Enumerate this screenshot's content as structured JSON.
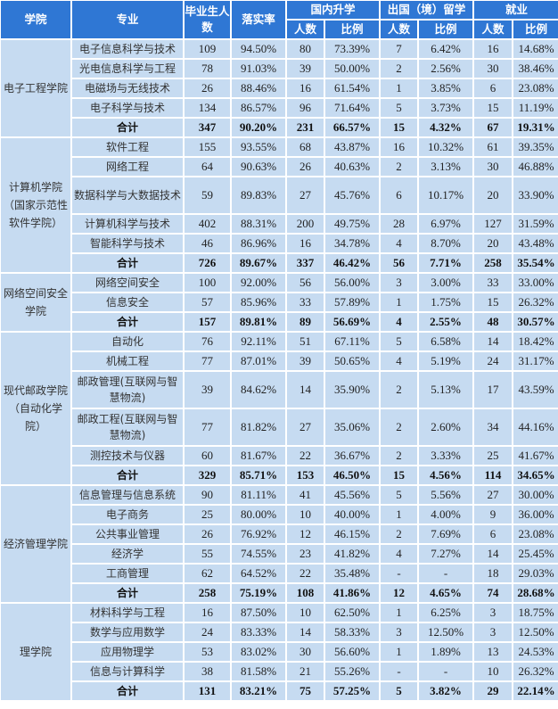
{
  "header": {
    "college": "学院",
    "major": "专业",
    "graduates": "毕业生人数",
    "rate": "落实率",
    "domestic": "国内升学",
    "abroad": "出国（境）留学",
    "employment": "就业",
    "count": "人数",
    "ratio": "比例"
  },
  "colors": {
    "header_bg": "#2f77d4",
    "cell_bg": "#c6dbf1"
  },
  "groups": [
    {
      "college": "电子工程学院",
      "rows": [
        [
          "电子信息科学与技术",
          "109",
          "94.50%",
          "80",
          "73.39%",
          "7",
          "6.42%",
          "16",
          "14.68%"
        ],
        [
          "光电信息科学与工程",
          "78",
          "91.03%",
          "39",
          "50.00%",
          "2",
          "2.56%",
          "30",
          "38.46%"
        ],
        [
          "电磁场与无线技术",
          "26",
          "88.46%",
          "16",
          "61.54%",
          "1",
          "3.85%",
          "6",
          "23.08%"
        ],
        [
          "电子科学与技术",
          "134",
          "86.57%",
          "96",
          "71.64%",
          "5",
          "3.73%",
          "15",
          "11.19%"
        ],
        [
          "合计",
          "347",
          "90.20%",
          "231",
          "66.57%",
          "15",
          "4.32%",
          "67",
          "19.31%"
        ]
      ]
    },
    {
      "college": "计算机学院（国家示范性软件学院）",
      "rows": [
        [
          "软件工程",
          "155",
          "93.55%",
          "68",
          "43.87%",
          "16",
          "10.32%",
          "61",
          "39.35%"
        ],
        [
          "网络工程",
          "64",
          "90.63%",
          "26",
          "40.63%",
          "2",
          "3.13%",
          "30",
          "46.88%"
        ],
        [
          "数据科学与大数据技术",
          "59",
          "89.83%",
          "27",
          "45.76%",
          "6",
          "10.17%",
          "20",
          "33.90%"
        ],
        [
          "计算机科学与技术",
          "402",
          "88.31%",
          "200",
          "49.75%",
          "28",
          "6.97%",
          "127",
          "31.59%"
        ],
        [
          "智能科学与技术",
          "46",
          "86.96%",
          "16",
          "34.78%",
          "4",
          "8.70%",
          "20",
          "43.48%"
        ],
        [
          "合计",
          "726",
          "89.67%",
          "337",
          "46.42%",
          "56",
          "7.71%",
          "258",
          "35.54%"
        ]
      ]
    },
    {
      "college": "网络空间安全学院",
      "rows": [
        [
          "网络空间安全",
          "100",
          "92.00%",
          "56",
          "56.00%",
          "3",
          "3.00%",
          "33",
          "33.00%"
        ],
        [
          "信息安全",
          "57",
          "85.96%",
          "33",
          "57.89%",
          "1",
          "1.75%",
          "15",
          "26.32%"
        ],
        [
          "合计",
          "157",
          "89.81%",
          "89",
          "56.69%",
          "4",
          "2.55%",
          "48",
          "30.57%"
        ]
      ]
    },
    {
      "college": "现代邮政学院（自动化学院）",
      "rows": [
        [
          "自动化",
          "76",
          "92.11%",
          "51",
          "67.11%",
          "5",
          "6.58%",
          "14",
          "18.42%"
        ],
        [
          "机械工程",
          "77",
          "87.01%",
          "39",
          "50.65%",
          "4",
          "5.19%",
          "24",
          "31.17%"
        ],
        [
          "邮政管理(互联网与智慧物流)",
          "39",
          "84.62%",
          "14",
          "35.90%",
          "2",
          "5.13%",
          "17",
          "43.59%"
        ],
        [
          "邮政工程(互联网与智慧物流)",
          "77",
          "81.82%",
          "27",
          "35.06%",
          "2",
          "2.60%",
          "34",
          "44.16%"
        ],
        [
          "测控技术与仪器",
          "60",
          "81.67%",
          "22",
          "36.67%",
          "2",
          "3.33%",
          "25",
          "41.67%"
        ],
        [
          "合计",
          "329",
          "85.71%",
          "153",
          "46.50%",
          "15",
          "4.56%",
          "114",
          "34.65%"
        ]
      ]
    },
    {
      "college": "经济管理学院",
      "rows": [
        [
          "信息管理与信息系统",
          "90",
          "81.11%",
          "41",
          "45.56%",
          "5",
          "5.56%",
          "27",
          "30.00%"
        ],
        [
          "电子商务",
          "25",
          "80.00%",
          "10",
          "40.00%",
          "1",
          "4.00%",
          "9",
          "36.00%"
        ],
        [
          "公共事业管理",
          "26",
          "76.92%",
          "12",
          "46.15%",
          "2",
          "7.69%",
          "6",
          "23.08%"
        ],
        [
          "经济学",
          "55",
          "74.55%",
          "23",
          "41.82%",
          "4",
          "7.27%",
          "14",
          "25.45%"
        ],
        [
          "工商管理",
          "62",
          "64.52%",
          "22",
          "35.48%",
          "-",
          "-",
          "18",
          "29.03%"
        ],
        [
          "合计",
          "258",
          "75.19%",
          "108",
          "41.86%",
          "12",
          "4.65%",
          "74",
          "28.68%"
        ]
      ]
    },
    {
      "college": "理学院",
      "rows": [
        [
          "材料科学与工程",
          "16",
          "87.50%",
          "10",
          "62.50%",
          "1",
          "6.25%",
          "3",
          "18.75%"
        ],
        [
          "数学与应用数学",
          "24",
          "83.33%",
          "14",
          "58.33%",
          "3",
          "12.50%",
          "3",
          "12.50%"
        ],
        [
          "应用物理学",
          "53",
          "83.02%",
          "30",
          "56.60%",
          "1",
          "1.89%",
          "13",
          "24.53%"
        ],
        [
          "信息与计算科学",
          "38",
          "81.58%",
          "21",
          "55.26%",
          "-",
          "-",
          "10",
          "26.32%"
        ],
        [
          "合计",
          "131",
          "83.21%",
          "75",
          "57.25%",
          "5",
          "3.82%",
          "29",
          "22.14%"
        ]
      ]
    }
  ]
}
